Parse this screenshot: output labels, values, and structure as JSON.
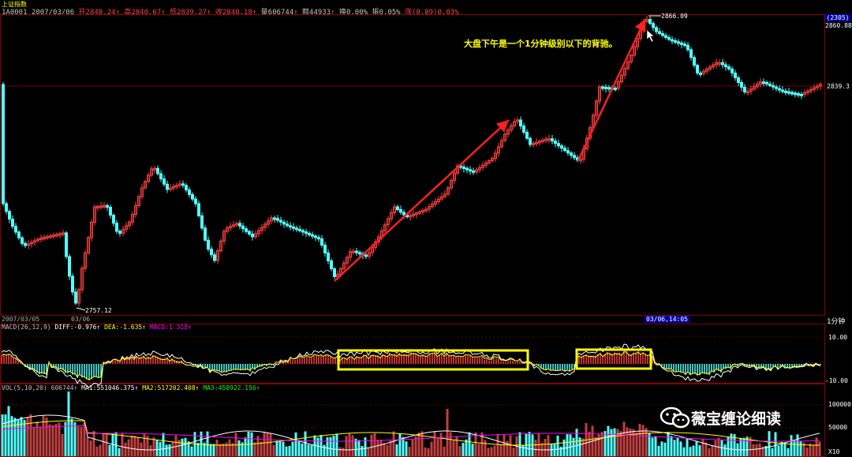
{
  "window": {
    "title": "上证指数"
  },
  "header": {
    "code": "1A0001",
    "date": "2007/03/06",
    "open": "开2840.24",
    "high": "高2840.67",
    "low": "低2839.27",
    "close": "收2840.18",
    "vol": "量606744",
    "new": "额44933",
    "turnover": "换0.00%",
    "amp": "振0.05%",
    "chg": "涨(0.89)0.03%"
  },
  "right_axis": {
    "tag_top": "(2305)",
    "price_high": "2860.88",
    "price_mid": "2839.3",
    "macd_10": "10.00",
    "macd_minus10": "-10.00",
    "vol_100k": "100000",
    "vol_50k": "50000",
    "vol_unit": "X10",
    "period": "1分钟"
  },
  "main_chart": {
    "high_marker": "2866.09",
    "low_marker": "2757.12",
    "date_left": "2007/03/05",
    "date_mid": "03/06",
    "cursor_date": "03/06,14:05",
    "annotation": "大盘下午是一个1分钟级别以下的背驰。"
  },
  "macd": {
    "title": "MACD(26,12,9)",
    "diff": "DIFF:-0.976↑",
    "dea": "DEA:-1.635↑",
    "macd": "MACD:1.318↑"
  },
  "vol": {
    "title": "VOL(5,10,20)",
    "value": "606744↑",
    "ma1": "MA1:551046.375↑",
    "ma2": "MA2:517202.408↑",
    "ma3": "MA3:458922.156↑"
  },
  "watermark": {
    "text": "薇宝缠论细读"
  },
  "colors": {
    "up": "#ff4040",
    "down": "#54ffff",
    "ma5": "#ffffff",
    "ma10": "#ffff00",
    "ma20": "#ff00ff"
  }
}
